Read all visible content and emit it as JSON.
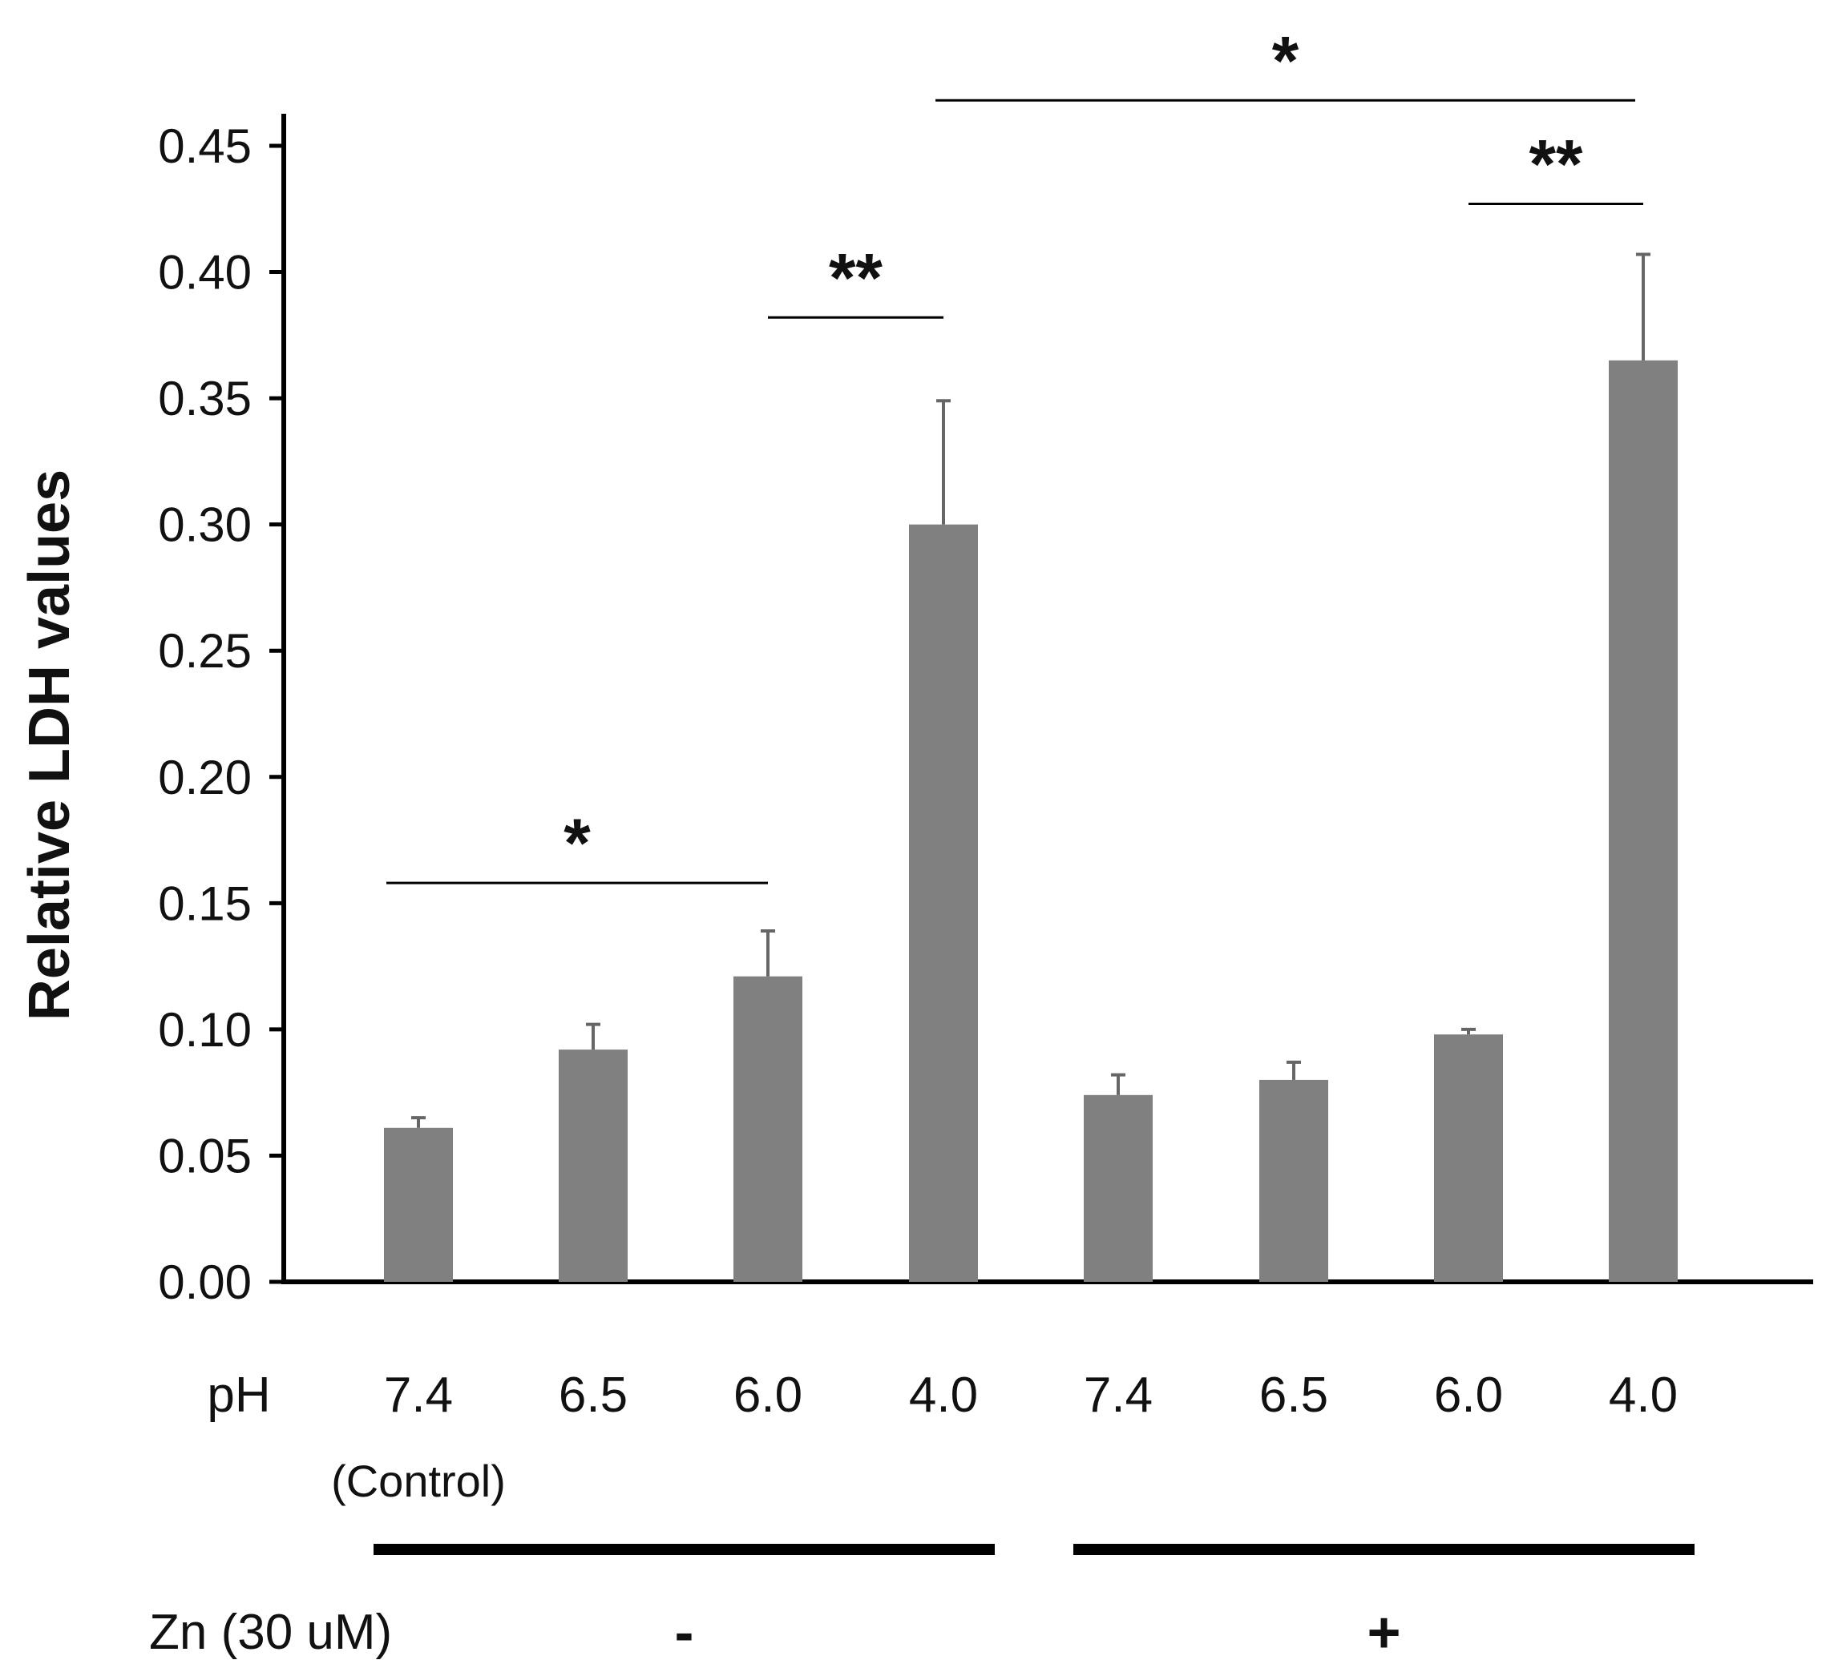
{
  "chart_data": {
    "type": "bar",
    "ylabel": "Relative LDH values",
    "ylim": [
      0,
      0.45
    ],
    "yticks": [
      "0.00",
      "0.05",
      "0.10",
      "0.15",
      "0.20",
      "0.25",
      "0.30",
      "0.35",
      "0.40",
      "0.45"
    ],
    "x_row_label": "pH",
    "categories": [
      "7.4",
      "6.5",
      "6.0",
      "4.0",
      "7.4",
      "6.5",
      "6.0",
      "4.0"
    ],
    "category_sublabels": [
      "(Control)",
      "",
      "",
      "",
      "",
      "",
      "",
      ""
    ],
    "values": [
      0.061,
      0.092,
      0.121,
      0.3,
      0.074,
      0.08,
      0.098,
      0.365
    ],
    "errors": [
      0.004,
      0.01,
      0.018,
      0.049,
      0.008,
      0.007,
      0.002,
      0.042
    ],
    "bar_color": "#808080",
    "grid": false,
    "group_row_label": "Zn (30 uM)",
    "groups": [
      {
        "label": "-",
        "categories": [
          0,
          3
        ]
      },
      {
        "label": "+",
        "categories": [
          4,
          7
        ]
      }
    ],
    "significance": [
      {
        "from": 0,
        "to": 2,
        "y": 0.158,
        "label": "*"
      },
      {
        "from": 2,
        "to": 3,
        "y": 0.382,
        "label": "**"
      },
      {
        "from": 6,
        "to": 7,
        "y": 0.427,
        "label": "**"
      },
      {
        "from": 3,
        "to": 7,
        "y": 0.468,
        "label": "*"
      }
    ]
  }
}
